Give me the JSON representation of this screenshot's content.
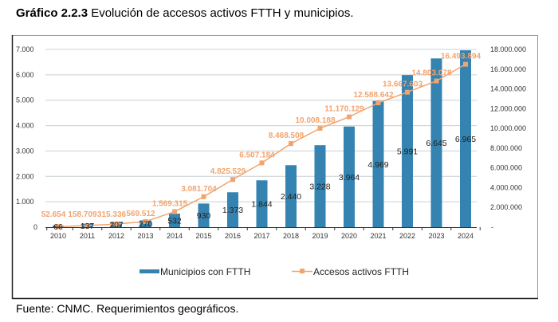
{
  "title_bold": "Gráfico 2.2.3",
  "title_rest": " Evolución de accesos activos FTTH y municipios.",
  "source": "Fuente: CNMC. Requerimientos geográficos.",
  "chart_data": {
    "type": "bar+line",
    "categories": [
      "2010",
      "2011",
      "2012",
      "2013",
      "2014",
      "2015",
      "2016",
      "2017",
      "2018",
      "2019",
      "2020",
      "2021",
      "2022",
      "2023",
      "2024"
    ],
    "series": [
      {
        "name": "Municipios con FTTH",
        "type": "bar",
        "axis": "left",
        "color": "#3483b0",
        "values": [
          66,
          137,
          207,
          270,
          532,
          930,
          1373,
          1844,
          2440,
          3228,
          3964,
          4969,
          5991,
          6645,
          6965
        ],
        "labels": [
          "66",
          "137",
          "207",
          "270",
          "532",
          "930",
          "1.373",
          "1.844",
          "2.440",
          "3.228",
          "3.964",
          "4.969",
          "5.991",
          "6.645",
          "6.965"
        ]
      },
      {
        "name": "Accesos activos FTTH",
        "type": "line",
        "axis": "right",
        "color": "#f2a46e",
        "values": [
          52654,
          158709,
          315336,
          569512,
          1569315,
          3081704,
          4825529,
          6507184,
          8468508,
          10008188,
          11170129,
          12588642,
          13667603,
          14803078,
          16493894
        ],
        "labels": [
          "52.654",
          "158.709",
          "315.336",
          "569.512",
          "1.569.315",
          "3.081.704",
          "4.825.529",
          "6.507.184",
          "8.468.508",
          "10.008.188",
          "11.170.129",
          "12.588.642",
          "13.667.603",
          "14.803.078",
          "16.493.894"
        ]
      }
    ],
    "left_axis": {
      "ylim": [
        0,
        7000
      ],
      "ticks": [
        "0",
        "1.000",
        "2.000",
        "3.000",
        "4.000",
        "5.000",
        "6.000",
        "7.000"
      ]
    },
    "right_axis": {
      "ylim": [
        0,
        18000000
      ],
      "ticks": [
        "-",
        "2.000.000",
        "4.000.000",
        "6.000.000",
        "8.000.000",
        "10.000.000",
        "12.000.000",
        "14.000.000",
        "16.000.000",
        "18.000.000"
      ]
    },
    "grid": true,
    "legend": "bottom"
  }
}
